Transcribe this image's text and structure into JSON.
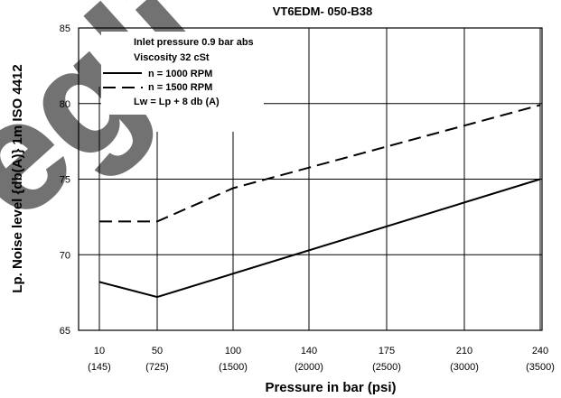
{
  "chart_data": {
    "type": "line",
    "title": "VT6EDM- 050-B38",
    "xlabel": "Pressure in bar (psi)",
    "ylabel": "Lp. Noise level {db(A)} 1m ISO 4412",
    "x_ticks": [
      {
        "bar": "10",
        "psi": "(145)"
      },
      {
        "bar": "50",
        "psi": "(725)"
      },
      {
        "bar": "100",
        "psi": "(1500)"
      },
      {
        "bar": "140",
        "psi": "(2000)"
      },
      {
        "bar": "175",
        "psi": "(2500)"
      },
      {
        "bar": "210",
        "psi": "(3000)"
      },
      {
        "bar": "240",
        "psi": "(3500)"
      }
    ],
    "y_ticks": [
      "65",
      "70",
      "75",
      "80",
      "85"
    ],
    "ylim": [
      65,
      85
    ],
    "series": [
      {
        "name": "n  = 1000 RPM",
        "style": "solid",
        "x": [
          "10",
          "50",
          "240"
        ],
        "y": [
          68.2,
          67.2,
          75
        ]
      },
      {
        "name": "n  = 1500 RPM",
        "style": "dashed",
        "x": [
          "10",
          "50",
          "100",
          "240"
        ],
        "y": [
          72.2,
          72.2,
          74.4,
          79.9
        ]
      }
    ],
    "annotations": [
      "Inlet pressure    0.9 bar abs",
      "Viscosity    32 cSt",
      "Lw  =  Lp  +  8  db (A)"
    ],
    "grid": true,
    "legend_position": "top-left"
  },
  "watermark": "egli"
}
